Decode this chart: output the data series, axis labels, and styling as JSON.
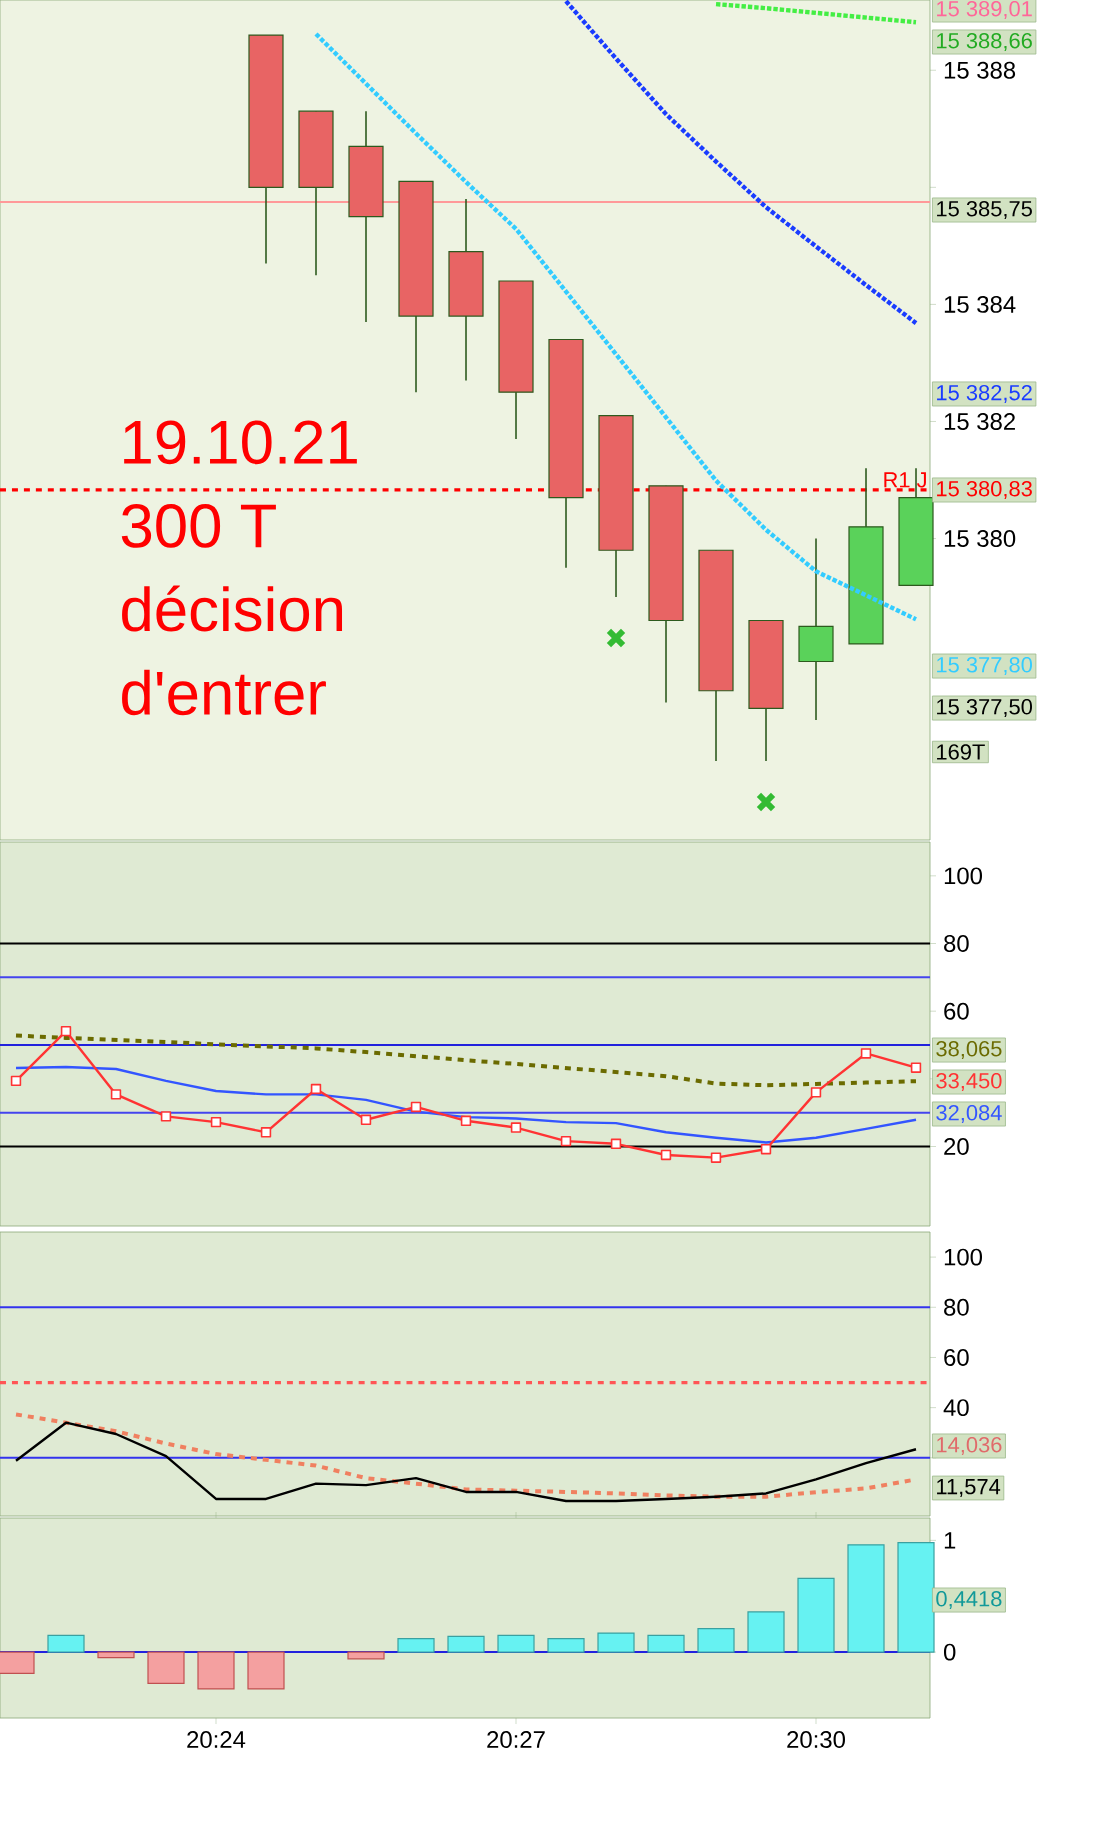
{
  "chart_data": [
    {
      "type": "candlestick",
      "categories": [
        null,
        null,
        null,
        null,
        null,
        null,
        null,
        null,
        null,
        null,
        null,
        null,
        null,
        null,
        null,
        null,
        null,
        null,
        null
      ],
      "ohlc": [
        null,
        null,
        null,
        null,
        null,
        [
          15388.6,
          15388.6,
          15384.7,
          15386.0
        ],
        [
          15387.3,
          15387.3,
          15384.5,
          15386.0
        ],
        [
          15386.7,
          15387.3,
          15383.7,
          15385.5
        ],
        [
          15386.1,
          15386.1,
          15382.5,
          15383.8
        ],
        [
          15384.9,
          15385.8,
          15382.7,
          15383.8
        ],
        [
          15384.4,
          15384.4,
          15381.7,
          15382.5
        ],
        [
          15383.4,
          15383.4,
          15379.5,
          15380.7
        ],
        [
          15382.1,
          15382.1,
          15379.0,
          15379.8
        ],
        [
          15380.9,
          15380.9,
          15377.2,
          15378.6
        ],
        [
          15379.8,
          15379.8,
          15376.2,
          15377.4
        ],
        [
          15378.6,
          15378.6,
          15376.2,
          15377.1
        ],
        [
          15377.9,
          15380.0,
          15376.9,
          15378.5
        ],
        [
          15378.2,
          15381.2,
          15378.2,
          15380.2
        ],
        [
          15379.2,
          15381.2,
          15379.2,
          15380.7
        ]
      ],
      "colors": [
        null,
        null,
        null,
        null,
        null,
        "#e86464",
        "#e86464",
        "#e86464",
        "#e86464",
        "#e86464",
        "#e86464",
        "#e86464",
        "#e86464",
        "#e86464",
        "#e86464",
        "#e86464",
        "#5ad25a",
        "#5ad25a",
        "#5ad25a"
      ],
      "ylim": [
        15374.85,
        15389.2
      ],
      "yticks": [
        {
          "value": 15380,
          "label": "15 380"
        },
        {
          "value": 15382,
          "label": "15 382"
        },
        {
          "value": 15384,
          "label": "15 384"
        },
        {
          "value": 15386,
          "label": null
        },
        {
          "value": 15388,
          "label": "15 388"
        }
      ],
      "tick_labels": "y",
      "series": [
        {
          "type": "line",
          "values": [
            null,
            null,
            null,
            null,
            null,
            null,
            15388.62,
            15387.77,
            15386.92,
            15386.09,
            15385.29,
            15384.22,
            15383.15,
            15382.07,
            15380.99,
            15380.15,
            15379.44,
            15379.03,
            15378.62
          ],
          "color": "#33ccff",
          "line_style": "dotted"
        },
        {
          "type": "line",
          "values": [
            null,
            null,
            null,
            null,
            null,
            null,
            null,
            null,
            null,
            null,
            null,
            15389.18,
            15388.2,
            15387.25,
            15386.44,
            15385.66,
            15384.99,
            15384.33,
            15383.68
          ],
          "color": "#1a3cff",
          "line_style": "dotted"
        },
        {
          "type": "line",
          "values": [
            null,
            null,
            null,
            null,
            null,
            null,
            null,
            null,
            null,
            null,
            null,
            null,
            null,
            null,
            15389.13,
            15389.06,
            15388.98,
            15388.9,
            15388.82
          ],
          "color": "#44ee44",
          "line_style": "dotted"
        },
        {
          "type": "scatter",
          "marker": "cross",
          "values": [
            null,
            null,
            null,
            null,
            null,
            null,
            null,
            null,
            null,
            null,
            null,
            null,
            15378.3,
            null,
            null,
            15375.5,
            null,
            null,
            null
          ],
          "color": "#33bb33"
        }
      ],
      "ref_lines": [
        {
          "axis": "y",
          "value": 15385.75,
          "color": "#ff9999",
          "line_style": "solid"
        },
        {
          "axis": "y",
          "value": 15380.83,
          "label": "R1 J",
          "color": "#ff0000",
          "line_style": "dashed"
        }
      ],
      "annotations": [
        "19.10.21",
        "300 T",
        "décision",
        "d'entrer",
        "15 389,01",
        "15 388,66",
        "15 385,75",
        "15 382,52",
        "15 380,83",
        "15 377,80",
        "15 377,50",
        "169T"
      ]
    },
    {
      "type": "line",
      "categories": [
        null,
        null,
        null,
        null,
        null,
        null,
        null,
        null,
        null,
        null,
        null,
        null,
        null,
        null,
        null,
        null,
        null,
        null,
        null
      ],
      "ylim": [
        -3.5,
        110
      ],
      "yticks": [
        20,
        {
          "value": 40,
          "label": null
        },
        60,
        80,
        100
      ],
      "tick_labels": "y",
      "series": [
        {
          "color": "#3355ff",
          "values": [
            43.2,
            43.5,
            42.9,
            39.4,
            36.4,
            35.4,
            35.4,
            33.8,
            30.3,
            28.7,
            28.3,
            27.2,
            26.9,
            24.2,
            22.6,
            21.2,
            22.6,
            25.2,
            27.9
          ],
          "line_style": "solid"
        },
        {
          "color": "#6b6b00",
          "values": [
            52.8,
            52.1,
            51.5,
            50.9,
            50.2,
            49.6,
            49.0,
            47.9,
            46.7,
            45.5,
            44.4,
            43.2,
            42.0,
            40.8,
            38.6,
            38.1,
            38.5,
            38.9,
            39.3
          ],
          "line_style": "dashed"
        },
        {
          "color": "#ff3333",
          "values": [
            39.4,
            54.1,
            35.4,
            28.9,
            27.2,
            24.2,
            37.0,
            27.9,
            31.7,
            27.6,
            25.6,
            21.6,
            20.8,
            17.5,
            16.7,
            19.2,
            36.0,
            47.5,
            43.3
          ],
          "marker": "square",
          "line_style": "solid"
        }
      ],
      "ref_lines": [
        {
          "axis": "y",
          "value": 80,
          "color": "#000000",
          "line_style": "solid"
        },
        {
          "axis": "y",
          "value": 20,
          "color": "#000000",
          "line_style": "solid"
        },
        {
          "axis": "y",
          "value": 50,
          "color": "#2222dd",
          "line_style": "solid"
        },
        {
          "axis": "y",
          "value": 70,
          "color": "#4444ee",
          "line_style": "solid"
        },
        {
          "axis": "y",
          "value": 30,
          "color": "#4444ee",
          "line_style": "solid"
        }
      ],
      "annotations": [
        "38,065",
        "33,450",
        "32,084"
      ]
    },
    {
      "type": "line",
      "categories": [
        null,
        null,
        null,
        null,
        null,
        null,
        null,
        null,
        null,
        null,
        null,
        null,
        null,
        null,
        null,
        null,
        null,
        null,
        null
      ],
      "ylim": [
        -3.2,
        110
      ],
      "yticks": [
        {
          "value": 20,
          "label": null
        },
        40,
        60,
        80,
        100
      ],
      "tick_labels": "y",
      "series": [
        {
          "color": "#f08060",
          "values": [
            37.3,
            34.0,
            30.6,
            25.7,
            21.5,
            19.2,
            16.9,
            11.9,
            9.7,
            7.4,
            6.9,
            6.4,
            5.8,
            5.0,
            4.5,
            4.5,
            6.3,
            7.8,
            11.4
          ],
          "line_style": "dashed"
        },
        {
          "color": "#000000",
          "values": [
            18.8,
            34.0,
            29.5,
            20.7,
            3.6,
            3.6,
            9.7,
            9.1,
            11.9,
            6.4,
            6.4,
            2.8,
            2.8,
            3.6,
            4.5,
            5.8,
            11.4,
            17.9,
            23.4
          ],
          "line_style": "solid"
        }
      ],
      "ref_lines": [
        {
          "axis": "y",
          "value": 80,
          "color": "#3333ee",
          "line_style": "solid"
        },
        {
          "axis": "y",
          "value": 50,
          "color": "#ff5555",
          "line_style": "dashed"
        },
        {
          "axis": "y",
          "value": 20,
          "color": "#3333ee",
          "line_style": "solid"
        }
      ],
      "annotations": [
        "14,036",
        "11,574"
      ]
    },
    {
      "type": "bar",
      "categories": [
        null,
        null,
        null,
        null,
        "20:24",
        null,
        null,
        null,
        null,
        null,
        "20:27",
        null,
        null,
        null,
        null,
        null,
        "20:30",
        null,
        null
      ],
      "values": [
        -0.19,
        0.15,
        -0.05,
        -0.28,
        -0.33,
        -0.33,
        null,
        -0.06,
        0.12,
        0.14,
        0.15,
        0.12,
        0.17,
        0.15,
        0.21,
        0.36,
        0.66,
        0.96,
        0.98
      ],
      "colors": [
        "#f4a0a0",
        "#66f2f2",
        "#f4a0a0",
        "#f4a0a0",
        "#f4a0a0",
        "#f4a0a0",
        "#f4a0a0",
        "#f4a0a0",
        "#66f2f2",
        "#66f2f2",
        "#66f2f2",
        "#66f2f2",
        "#66f2f2",
        "#66f2f2",
        "#66f2f2",
        "#66f2f2",
        "#66f2f2",
        "#66f2f2",
        "#66f2f2"
      ],
      "ylim": [
        -0.59,
        1.2
      ],
      "yticks": [
        0,
        1
      ],
      "ref_lines": [
        {
          "axis": "y",
          "value": 0,
          "color": "#2222dd",
          "line_style": "solid"
        }
      ],
      "annotations": [
        "0,4418"
      ]
    }
  ]
}
